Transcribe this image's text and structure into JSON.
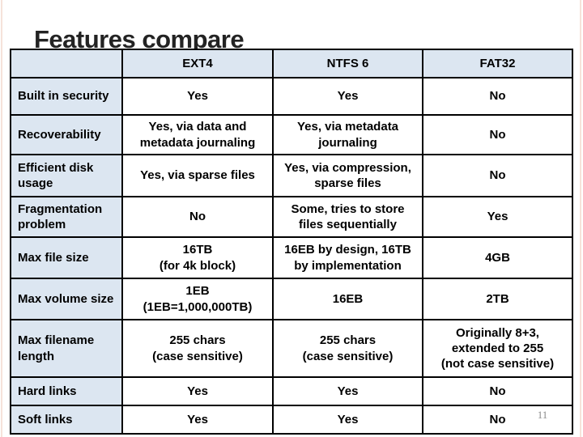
{
  "slide": {
    "title": "Features compare",
    "page_number": "11",
    "colors": {
      "header_fill": "#dce6f1",
      "border": "#000000",
      "title_text": "#232323",
      "page_number_text": "#8c8c8c"
    }
  },
  "table": {
    "columns": [
      "",
      "EXT4",
      "NTFS 6",
      "FAT32"
    ],
    "rows": [
      {
        "feature": "Built in security",
        "values": [
          "Yes",
          "Yes",
          "No"
        ]
      },
      {
        "feature": "Recoverability",
        "values": [
          "Yes, via data and\nmetadata journaling",
          "Yes, via metadata\njournaling",
          "No"
        ]
      },
      {
        "feature": "Efficient disk\nusage",
        "values": [
          "Yes, via sparse files",
          "Yes, via compression,\nsparse files",
          "No"
        ]
      },
      {
        "feature": "Fragmentation\nproblem",
        "values": [
          "No",
          "Some, tries to store\nfiles sequentially",
          "Yes"
        ]
      },
      {
        "feature": "Max file size",
        "values": [
          "16TB\n(for 4k block)",
          "16EB by design, 16TB\nby implementation",
          "4GB"
        ]
      },
      {
        "feature": "Max volume size",
        "values": [
          "1EB\n(1EB=1,000,000TB)",
          "16EB",
          "2TB"
        ]
      },
      {
        "feature": "Max filename\nlength",
        "values": [
          "255 chars\n(case sensitive)",
          "255 chars\n(case sensitive)",
          "Originally 8+3,\nextended to 255\n(not case sensitive)"
        ]
      },
      {
        "feature": "Hard links",
        "values": [
          "Yes",
          "Yes",
          "No"
        ]
      },
      {
        "feature": "Soft links",
        "values": [
          "Yes",
          "Yes",
          "No"
        ]
      }
    ]
  }
}
